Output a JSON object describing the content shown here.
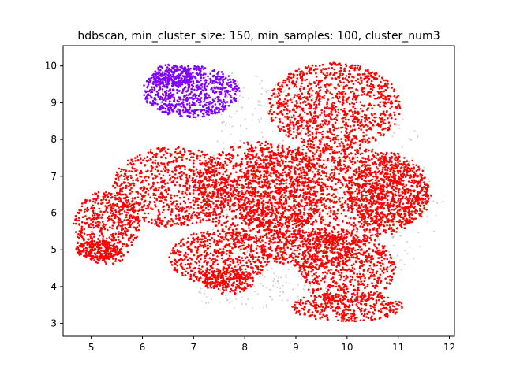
{
  "chart_data": {
    "type": "scatter",
    "title": "hdbscan, min_cluster_size: 150, min_samples: 100, cluster_num3",
    "xlabel": "",
    "ylabel": "",
    "xlim": [
      4.45,
      12.1
    ],
    "ylim": [
      2.65,
      10.55
    ],
    "x_ticks": [
      5,
      6,
      7,
      8,
      9,
      10,
      11,
      12
    ],
    "y_ticks": [
      3,
      4,
      5,
      6,
      7,
      8,
      9,
      10
    ],
    "grid": false,
    "legend": "none",
    "series": [
      {
        "color": "#b8b8b8",
        "role": "noise",
        "regions": [
          {
            "cx": 9.5,
            "cy": 6.6,
            "rx": 2.4,
            "ry": 3.0,
            "n": 500
          },
          {
            "cx": 7.6,
            "cy": 9.1,
            "rx": 1.5,
            "ry": 0.7,
            "n": 120
          },
          {
            "cx": 8.1,
            "cy": 3.9,
            "rx": 1.2,
            "ry": 0.5,
            "n": 80
          }
        ]
      },
      {
        "color": "#ff0000",
        "role": "cluster",
        "regions": [
          {
            "cx": 9.75,
            "cy": 8.9,
            "rx": 1.3,
            "ry": 1.2,
            "n": 1100
          },
          {
            "cx": 9.7,
            "cy": 6.5,
            "rx": 1.95,
            "ry": 1.35,
            "n": 1700
          },
          {
            "cx": 10.8,
            "cy": 6.6,
            "rx": 0.8,
            "ry": 1.05,
            "n": 600
          },
          {
            "cx": 8.3,
            "cy": 6.6,
            "rx": 1.25,
            "ry": 1.35,
            "n": 1100
          },
          {
            "cx": 6.6,
            "cy": 6.7,
            "rx": 1.2,
            "ry": 1.1,
            "n": 900
          },
          {
            "cx": 5.3,
            "cy": 5.6,
            "rx": 0.65,
            "ry": 1.0,
            "n": 500
          },
          {
            "cx": 5.15,
            "cy": 5.0,
            "rx": 0.45,
            "ry": 0.25,
            "n": 200
          },
          {
            "cx": 7.5,
            "cy": 4.8,
            "rx": 1.0,
            "ry": 0.75,
            "n": 600
          },
          {
            "cx": 7.7,
            "cy": 4.15,
            "rx": 0.5,
            "ry": 0.35,
            "n": 200
          },
          {
            "cx": 10.0,
            "cy": 4.5,
            "rx": 0.95,
            "ry": 0.95,
            "n": 600
          },
          {
            "cx": 10.0,
            "cy": 3.45,
            "rx": 1.1,
            "ry": 0.4,
            "n": 400
          },
          {
            "cx": 9.3,
            "cy": 5.0,
            "rx": 1.0,
            "ry": 0.5,
            "n": 400
          }
        ]
      },
      {
        "color": "#7f00ff",
        "role": "cluster",
        "regions": [
          {
            "cx": 6.95,
            "cy": 9.3,
            "rx": 0.95,
            "ry": 0.7,
            "n": 800
          },
          {
            "cx": 6.6,
            "cy": 9.75,
            "rx": 0.4,
            "ry": 0.3,
            "n": 150
          }
        ]
      }
    ]
  }
}
